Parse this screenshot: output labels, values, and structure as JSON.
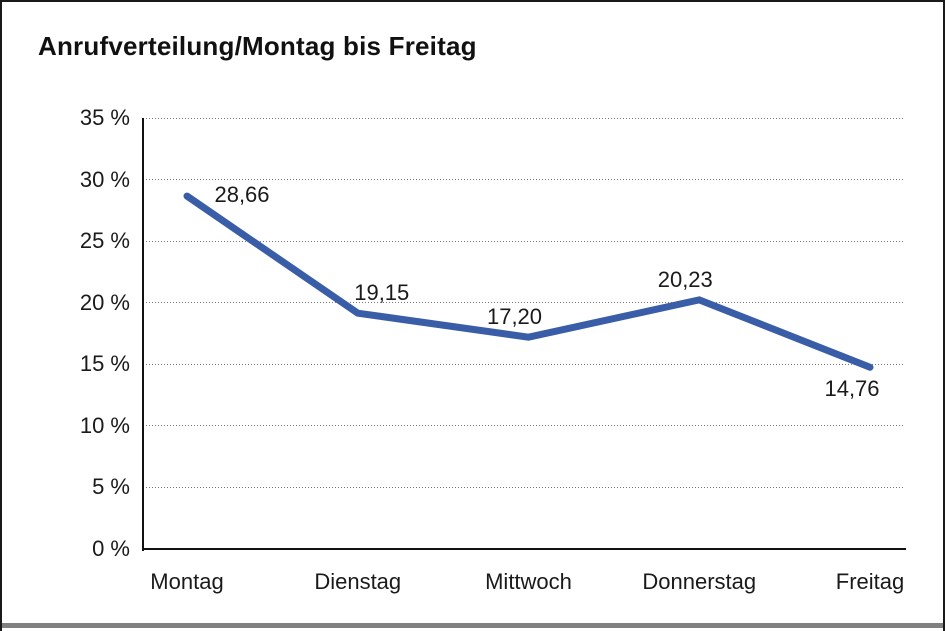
{
  "chart": {
    "title": "Anrufverteilung/Montag bis Freitag",
    "y_axis_labels": [
      "35 %",
      "30 %",
      "25 %",
      "20 %",
      "15 %",
      "10 %",
      "5 %",
      "0 %"
    ],
    "value_labels": [
      "28,66",
      "19,15",
      "17,20",
      "20,23",
      "14,76"
    ],
    "line_color": "#3A5DA8",
    "text_color": "#1A1A1A",
    "grid_color": "#777777",
    "axis_color": "#111111",
    "frame_border_color": "#1A1A1A",
    "frame_shadow_color": "#808080"
  },
  "chart_data": {
    "type": "line",
    "title": "Anrufverteilung/Montag bis Freitag",
    "categories": [
      "Montag",
      "Dienstag",
      "Mittwoch",
      "Donnerstag",
      "Freitag"
    ],
    "values": [
      28.66,
      19.15,
      17.2,
      20.23,
      14.76
    ],
    "xlabel": "",
    "ylabel": "",
    "ylim": [
      0,
      35
    ],
    "y_tick_step": 5,
    "y_tick_suffix": " %",
    "grid": "horizontal-dotted",
    "legend_position": "none",
    "point_labels_visible": true,
    "decimal_separator": ","
  }
}
